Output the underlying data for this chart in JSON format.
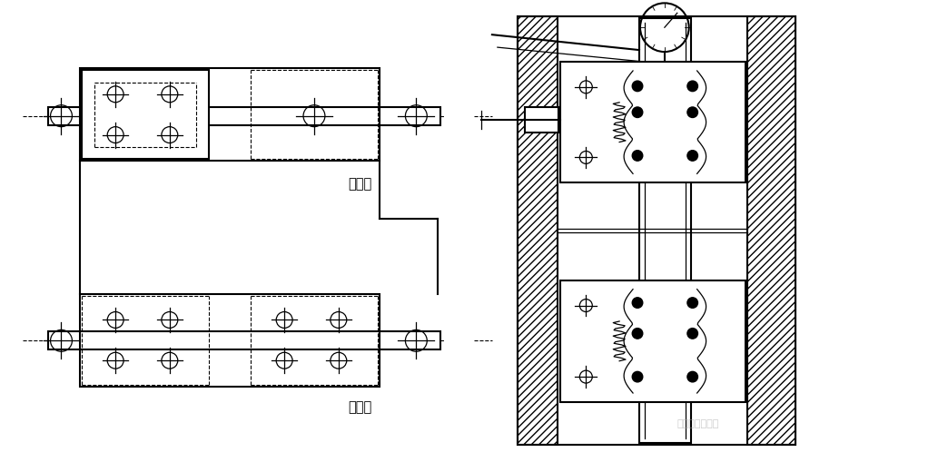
{
  "bg_color": "#ffffff",
  "line_color": "#000000",
  "label_judo": "従動側",
  "label_kijun": "基準側",
  "watermark": "伊比客工业集团",
  "fig_width": 10.44,
  "fig_height": 5.1,
  "dpi": 100
}
